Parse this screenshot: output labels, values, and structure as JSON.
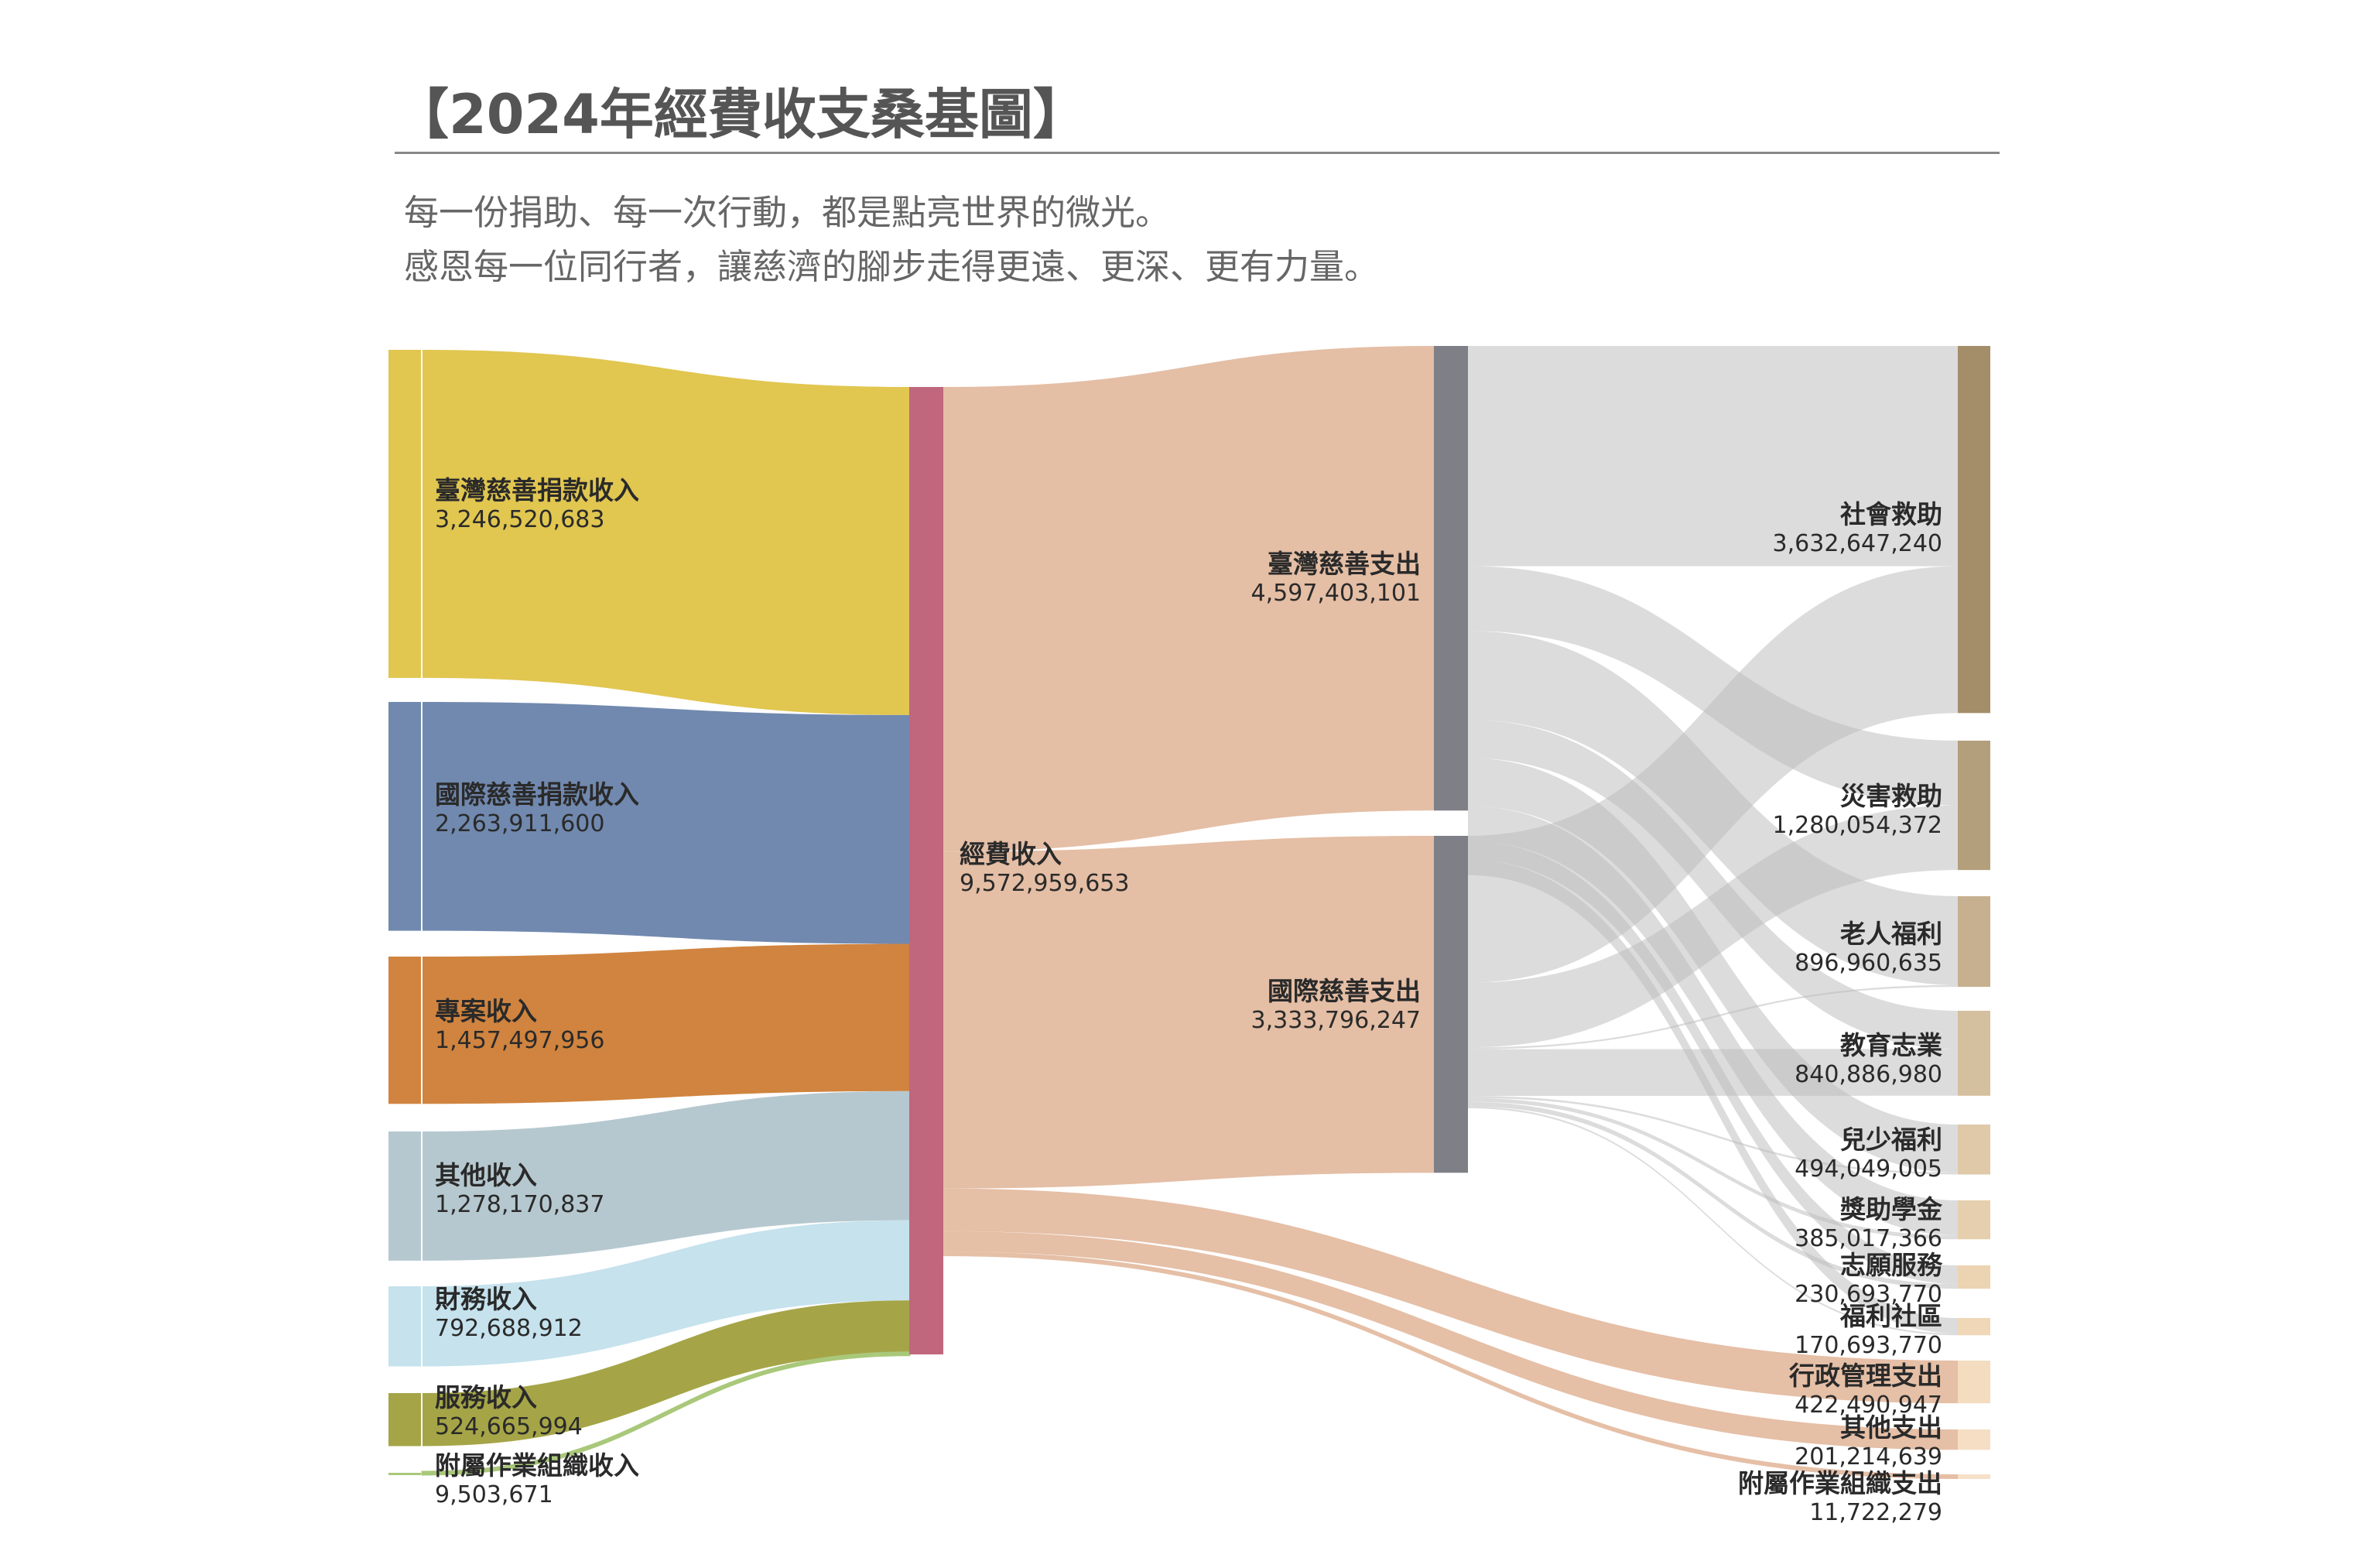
{
  "title": "【2024年經費收支桑基圖】",
  "subtitle_lines": [
    "每一份捐助、每一次行動，都是點亮世界的微光。",
    "感恩每一位同行者，讓慈濟的腳步走得更遠、更深、更有力量。"
  ],
  "chart_data": {
    "type": "sankey",
    "total": {
      "name": "經費收入",
      "value": "9,572,959,653",
      "amount": 9572959653,
      "color": "#c0667d"
    },
    "income": [
      {
        "name": "臺灣慈善捐款收入",
        "value": "3,246,520,683",
        "amount": 3246520683,
        "color": "#e1c650"
      },
      {
        "name": "國際慈善捐款收入",
        "value": "2,263,911,600",
        "amount": 2263911600,
        "color": "#7189af"
      },
      {
        "name": "專案收入",
        "value": "1,457,497,956",
        "amount": 1457497956,
        "color": "#d0843f"
      },
      {
        "name": "其他收入",
        "value": "1,278,170,837",
        "amount": 1278170837,
        "color": "#b6c8cf"
      },
      {
        "name": "財務收入",
        "value": "792,688,912",
        "amount": 792688912,
        "color": "#c5e2ed"
      },
      {
        "name": "服務收入",
        "value": "524,665,994",
        "amount": 524665994,
        "color": "#a5a548"
      },
      {
        "name": "附屬作業組織收入",
        "value": "9,503,671",
        "amount": 9503671,
        "color": "#a9c87a"
      }
    ],
    "programs": [
      {
        "name": "臺灣慈善支出",
        "value": "4,597,403,101",
        "amount": 4597403101,
        "color": "#7f7f87"
      },
      {
        "name": "國際慈善支出",
        "value": "3,333,796,247",
        "amount": 3333796247,
        "color": "#7f7f87"
      }
    ],
    "expenses": [
      {
        "name": "社會救助",
        "value": "3,632,647,240",
        "amount": 3632647240,
        "color": "#a48e69"
      },
      {
        "name": "災害救助",
        "value": "1,280,054,372",
        "amount": 1280054372,
        "color": "#b49f7c"
      },
      {
        "name": "老人福利",
        "value": "896,960,635",
        "amount": 896960635,
        "color": "#c6b08f"
      },
      {
        "name": "教育志業",
        "value": "840,886,980",
        "amount": 840886980,
        "color": "#d4bf9e"
      },
      {
        "name": "兒少福利",
        "value": "494,049,005",
        "amount": 494049005,
        "color": "#dfc9a8"
      },
      {
        "name": "獎助學金",
        "value": "385,017,366",
        "amount": 385017366,
        "color": "#e6cfae"
      },
      {
        "name": "志願服務",
        "value": "230,693,770",
        "amount": 230693770,
        "color": "#ecd3b2"
      },
      {
        "name": "福利社區",
        "value": "170,693,770",
        "amount": 170693770,
        "color": "#efd7b8"
      },
      {
        "name": "行政管理支出",
        "value": "422,490,947",
        "amount": 422490947,
        "color": "#f3dcc0"
      },
      {
        "name": "其他支出",
        "value": "201,214,639",
        "amount": 201214639,
        "color": "#f5dec3"
      },
      {
        "name": "附屬作業組織支出",
        "value": "11,722,279",
        "amount": 11722279,
        "color": "#f6e0c8"
      }
    ]
  }
}
